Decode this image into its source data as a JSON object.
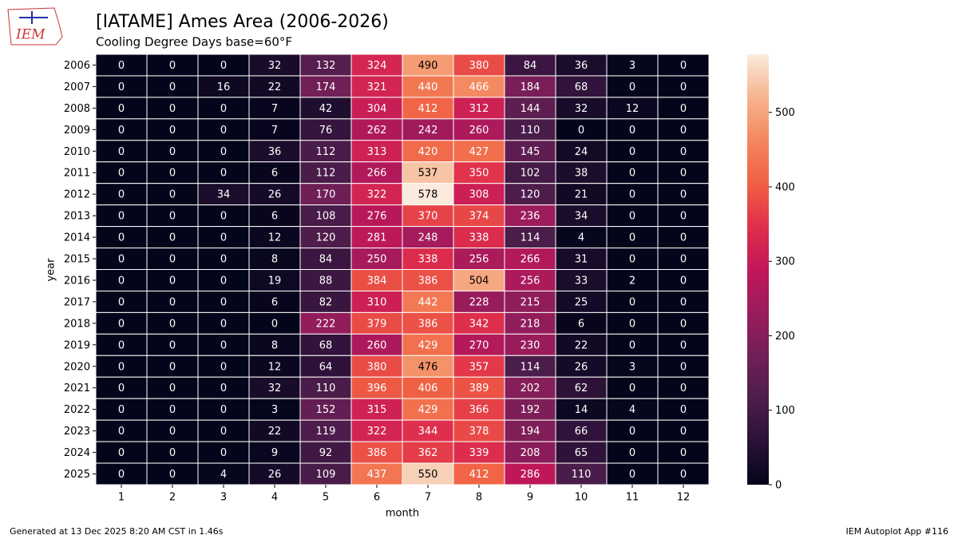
{
  "chart_data": {
    "type": "heatmap",
    "title": "[IATAME] Ames Area (2006-2026)",
    "subtitle": "Cooling Degree Days base=60°F",
    "xlabel": "month",
    "ylabel": "year",
    "x": [
      1,
      2,
      3,
      4,
      5,
      6,
      7,
      8,
      9,
      10,
      11,
      12
    ],
    "y": [
      2006,
      2007,
      2008,
      2009,
      2010,
      2011,
      2012,
      2013,
      2014,
      2015,
      2016,
      2017,
      2018,
      2019,
      2020,
      2021,
      2022,
      2023,
      2024,
      2025
    ],
    "values": [
      [
        0,
        0,
        0,
        32,
        132,
        324,
        490,
        380,
        84,
        36,
        3,
        0
      ],
      [
        0,
        0,
        16,
        22,
        174,
        321,
        440,
        466,
        184,
        68,
        0,
        0
      ],
      [
        0,
        0,
        0,
        7,
        42,
        304,
        412,
        312,
        144,
        32,
        12,
        0
      ],
      [
        0,
        0,
        0,
        7,
        76,
        262,
        242,
        260,
        110,
        0,
        0,
        0
      ],
      [
        0,
        0,
        0,
        36,
        112,
        313,
        420,
        427,
        145,
        24,
        0,
        0
      ],
      [
        0,
        0,
        0,
        6,
        112,
        266,
        537,
        350,
        102,
        38,
        0,
        0
      ],
      [
        0,
        0,
        34,
        26,
        170,
        322,
        578,
        308,
        120,
        21,
        0,
        0
      ],
      [
        0,
        0,
        0,
        6,
        108,
        276,
        370,
        374,
        236,
        34,
        0,
        0
      ],
      [
        0,
        0,
        0,
        12,
        120,
        281,
        248,
        338,
        114,
        4,
        0,
        0
      ],
      [
        0,
        0,
        0,
        8,
        84,
        250,
        338,
        256,
        266,
        31,
        0,
        0
      ],
      [
        0,
        0,
        0,
        19,
        88,
        384,
        386,
        504,
        256,
        33,
        2,
        0
      ],
      [
        0,
        0,
        0,
        6,
        82,
        310,
        442,
        228,
        215,
        25,
        0,
        0
      ],
      [
        0,
        0,
        0,
        0,
        222,
        379,
        386,
        342,
        218,
        6,
        0,
        0
      ],
      [
        0,
        0,
        0,
        8,
        68,
        260,
        429,
        270,
        230,
        22,
        0,
        0
      ],
      [
        0,
        0,
        0,
        12,
        64,
        380,
        476,
        357,
        114,
        26,
        3,
        0
      ],
      [
        0,
        0,
        0,
        32,
        110,
        396,
        406,
        389,
        202,
        62,
        0,
        0
      ],
      [
        0,
        0,
        0,
        3,
        152,
        315,
        429,
        366,
        192,
        14,
        4,
        0
      ],
      [
        0,
        0,
        0,
        22,
        119,
        322,
        344,
        378,
        194,
        66,
        0,
        0
      ],
      [
        0,
        0,
        0,
        9,
        92,
        386,
        362,
        339,
        208,
        65,
        0,
        0
      ],
      [
        0,
        0,
        4,
        26,
        109,
        437,
        550,
        412,
        286,
        110,
        0,
        0
      ]
    ],
    "zlim": [
      0,
      578
    ],
    "colorbar_ticks": [
      0,
      100,
      200,
      300,
      400,
      500
    ],
    "colormap": [
      "#03051a",
      "#2b1137",
      "#4c1d4b",
      "#711f57",
      "#9a1c5b",
      "#c1175a",
      "#e0304b",
      "#f06043",
      "#f4875e",
      "#f6b48e",
      "#faebdd"
    ],
    "footer_left": "Generated at 13 Dec 2025 8:20 AM CST in 1.46s",
    "footer_right": "IEM Autoplot App #116",
    "logo": "IEM"
  }
}
